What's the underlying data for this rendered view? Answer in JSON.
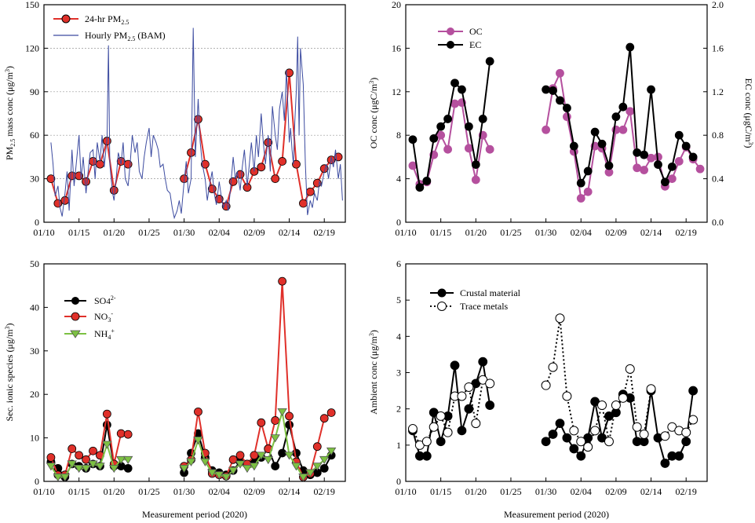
{
  "figure": {
    "xlabel": "Measurement period (2020)",
    "date_ticks": [
      "01/10",
      "01/15",
      "01/20",
      "01/25",
      "01/30",
      "02/04",
      "02/09",
      "02/14",
      "02/19"
    ]
  },
  "chart_data": [
    {
      "id": "pm25",
      "type": "line",
      "ylabel": "PM2.5 mass conc (μg/m3)",
      "ylim": [
        0,
        150
      ],
      "yticks": [
        0,
        30,
        60,
        90,
        120,
        150
      ],
      "x_unit": "day of year (Jan 1 = 1)",
      "xlim": [
        10,
        53
      ],
      "series": [
        {
          "name": "24-hr PM2.5",
          "color": "#e0302a",
          "x": [
            11,
            12,
            13,
            14,
            15,
            16,
            17,
            18,
            19,
            20,
            21,
            22,
            30,
            31,
            32,
            33,
            34,
            35,
            36,
            37,
            38,
            39,
            40,
            41,
            42,
            43,
            44,
            45,
            46,
            47,
            48,
            49,
            50,
            51,
            52
          ],
          "values": [
            30,
            13,
            15,
            32,
            32,
            28,
            42,
            40,
            56,
            22,
            42,
            40,
            30,
            48,
            71,
            40,
            23,
            16,
            11,
            28,
            33,
            24,
            35,
            38,
            55,
            30,
            42,
            103,
            40,
            13,
            21,
            27,
            37,
            43,
            45
          ]
        },
        {
          "name": "Hourly PM2.5 (BAM)",
          "color": "#3c4ba0",
          "x": [
            11,
            11.3,
            11.6,
            12,
            12.3,
            12.6,
            13,
            13.3,
            13.6,
            14,
            14.3,
            14.6,
            15,
            15.3,
            15.6,
            16,
            16.3,
            16.6,
            17,
            17.3,
            17.6,
            18,
            18.3,
            18.6,
            19,
            19.2,
            19.4,
            19.6,
            19.8,
            20,
            20.3,
            20.6,
            21,
            21.3,
            21.6,
            22,
            22.3,
            22.6,
            23,
            23.3,
            23.6,
            24,
            24.3,
            24.6,
            25,
            25.3,
            25.6,
            26,
            26.3,
            26.6,
            27,
            27.3,
            27.6,
            28,
            28.3,
            28.6,
            29,
            29.3,
            29.6,
            30,
            30.3,
            30.6,
            31,
            31.3,
            31.6,
            32,
            32.3,
            32.6,
            33,
            33.3,
            33.6,
            34,
            34.3,
            34.6,
            35,
            35.3,
            35.6,
            36,
            36.3,
            36.6,
            37,
            37.3,
            37.6,
            38,
            38.3,
            38.6,
            39,
            39.3,
            39.6,
            40,
            40.3,
            40.6,
            41,
            41.3,
            41.6,
            42,
            42.3,
            42.6,
            43,
            43.3,
            43.6,
            44,
            44.3,
            44.6,
            45,
            45.2,
            45.4,
            45.6,
            45.8,
            46,
            46.2,
            46.4,
            46.6,
            47,
            47.3,
            47.6,
            48,
            48.3,
            48.6,
            49,
            49.3,
            49.6,
            50,
            50.3,
            50.6,
            51,
            51.3,
            51.6,
            52,
            52.3,
            52.6
          ],
          "values": [
            55,
            40,
            18,
            25,
            10,
            4,
            20,
            35,
            8,
            50,
            25,
            40,
            60,
            30,
            45,
            20,
            35,
            48,
            50,
            30,
            55,
            42,
            60,
            38,
            58,
            122,
            40,
            30,
            20,
            15,
            30,
            48,
            40,
            55,
            30,
            25,
            40,
            60,
            48,
            55,
            35,
            30,
            45,
            55,
            65,
            45,
            60,
            55,
            50,
            38,
            40,
            30,
            22,
            20,
            10,
            3,
            8,
            15,
            6,
            28,
            42,
            20,
            30,
            134,
            45,
            85,
            55,
            40,
            30,
            15,
            25,
            35,
            20,
            12,
            28,
            18,
            10,
            15,
            8,
            22,
            45,
            30,
            35,
            22,
            38,
            50,
            25,
            40,
            55,
            35,
            60,
            45,
            75,
            55,
            40,
            60,
            35,
            80,
            60,
            50,
            78,
            90,
            70,
            105,
            55,
            65,
            50,
            40,
            70,
            90,
            128,
            60,
            120,
            95,
            40,
            5,
            15,
            10,
            20,
            15,
            28,
            25,
            35,
            40,
            30,
            45,
            38,
            50,
            30,
            40,
            15
          ]
        }
      ],
      "legend": [
        "24-hr PM2.5",
        "Hourly PM2.5 (BAM)"
      ],
      "legend_position": "top-left"
    },
    {
      "id": "ocec",
      "type": "line",
      "ylabel": "OC conc (μgC/m3)",
      "ylim": [
        0,
        20
      ],
      "yticks": [
        0,
        4,
        8,
        12,
        16,
        20
      ],
      "y2label": "EC conc (μgC/m3)",
      "y2lim": [
        0,
        2.0
      ],
      "y2ticks": [
        "0.0",
        "0.4",
        "0.8",
        "1.2",
        "1.6",
        "2.0"
      ],
      "series": [
        {
          "name": "OC",
          "color": "#b5509e",
          "axis": "left",
          "x": [
            11,
            12,
            13,
            14,
            15,
            16,
            17,
            18,
            19,
            20,
            21,
            22,
            30,
            31,
            32,
            33,
            34,
            35,
            36,
            37,
            38,
            39,
            40,
            41,
            42,
            43,
            44,
            45,
            46,
            47,
            48,
            49,
            50,
            51,
            52
          ],
          "values": [
            5.2,
            3.5,
            3.7,
            6.2,
            8.0,
            6.7,
            10.9,
            11.0,
            6.8,
            3.9,
            8.0,
            6.7,
            8.5,
            12.3,
            13.7,
            9.7,
            6.5,
            2.2,
            2.8,
            7.0,
            6.8,
            4.6,
            8.5,
            8.5,
            10.2,
            5.0,
            4.8,
            5.9,
            6.0,
            3.3,
            4.0,
            5.6,
            6.9,
            5.8,
            4.9
          ]
        },
        {
          "name": "EC",
          "color": "#000000",
          "axis": "right",
          "x": [
            11,
            12,
            13,
            14,
            15,
            16,
            17,
            18,
            19,
            20,
            21,
            22,
            30,
            31,
            32,
            33,
            34,
            35,
            36,
            37,
            38,
            39,
            40,
            41,
            42,
            43,
            44,
            45,
            46,
            47,
            48,
            49,
            50,
            51,
            52
          ],
          "values": [
            0.76,
            0.32,
            0.38,
            0.77,
            0.88,
            0.95,
            1.28,
            1.22,
            0.88,
            0.53,
            0.95,
            1.48,
            1.22,
            1.21,
            1.12,
            1.05,
            0.7,
            0.36,
            0.47,
            0.83,
            0.72,
            0.52,
            0.97,
            1.06,
            1.61,
            0.64,
            0.62,
            1.22,
            0.53,
            0.37,
            0.51,
            0.8,
            0.7,
            0.6,
            null
          ]
        }
      ],
      "legend": [
        "OC",
        "EC"
      ],
      "legend_position": "top-left"
    },
    {
      "id": "ionic",
      "type": "line",
      "ylabel": "Sec. ionic species (μg/m3)",
      "ylim": [
        0,
        50
      ],
      "yticks": [
        0,
        10,
        20,
        30,
        40,
        50
      ],
      "series": [
        {
          "name": "SO4 2-",
          "color": "#000000",
          "x": [
            11,
            12,
            13,
            14,
            15,
            16,
            17,
            18,
            19,
            20,
            21,
            22,
            30,
            31,
            32,
            33,
            34,
            35,
            36,
            37,
            38,
            39,
            40,
            41,
            42,
            43,
            44,
            45,
            46,
            47,
            48,
            49,
            50,
            51,
            52
          ],
          "values": [
            4.5,
            3.0,
            1.0,
            4.0,
            3.5,
            3.0,
            4.0,
            3.5,
            13.0,
            3.5,
            3.5,
            3.0,
            2.0,
            6.5,
            11.0,
            5.5,
            2.5,
            2.0,
            1.5,
            2.5,
            4.5,
            4.0,
            4.5,
            5.5,
            7.5,
            3.5,
            6.5,
            13.0,
            6.5,
            2.5,
            1.5,
            2.0,
            3.0,
            6.0,
            null
          ]
        },
        {
          "name": "NO3 -",
          "color": "#e0302a",
          "x": [
            11,
            12,
            13,
            14,
            15,
            16,
            17,
            18,
            19,
            20,
            21,
            22,
            30,
            31,
            32,
            33,
            34,
            35,
            36,
            37,
            38,
            39,
            40,
            41,
            42,
            43,
            44,
            45,
            46,
            47,
            48,
            49,
            50,
            51,
            52
          ],
          "values": [
            5.5,
            1.5,
            1.5,
            7.5,
            6.0,
            5.0,
            7.0,
            6.0,
            15.5,
            4.0,
            11.0,
            10.8,
            3.5,
            5.0,
            16.0,
            6.5,
            1.8,
            1.5,
            1.2,
            5.0,
            6.0,
            4.0,
            6.0,
            13.5,
            7.5,
            14.0,
            46.0,
            15.0,
            4.5,
            1.0,
            1.8,
            8.0,
            14.5,
            15.8,
            null
          ]
        },
        {
          "name": "NH4 +",
          "color": "#7cc142",
          "x": [
            11,
            12,
            13,
            14,
            15,
            16,
            17,
            18,
            19,
            20,
            21,
            22,
            30,
            31,
            32,
            33,
            34,
            35,
            36,
            37,
            38,
            39,
            40,
            41,
            42,
            43,
            44,
            45,
            46,
            47,
            48,
            49,
            50,
            51,
            52
          ],
          "values": [
            3.5,
            1.0,
            1.0,
            4.0,
            3.0,
            3.0,
            4.0,
            3.5,
            8.5,
            3.0,
            5.0,
            5.0,
            3.0,
            4.5,
            9.5,
            4.5,
            2.0,
            1.5,
            1.0,
            2.5,
            4.0,
            3.0,
            3.5,
            6.0,
            5.0,
            10.0,
            16.0,
            6.0,
            3.5,
            1.0,
            2.0,
            3.5,
            5.0,
            7.0,
            null
          ]
        }
      ],
      "legend": [
        "SO4 2-",
        "NO3 -",
        "NH4 +"
      ],
      "legend_position": "top-left"
    },
    {
      "id": "crustal",
      "type": "line",
      "ylabel": "Ambient conc (μg/m3)",
      "ylim": [
        0,
        6
      ],
      "yticks": [
        0,
        1,
        2,
        3,
        4,
        5,
        6
      ],
      "series": [
        {
          "name": "Crustal material",
          "color": "#000000",
          "style": "solid",
          "x": [
            11,
            12,
            13,
            14,
            15,
            16,
            17,
            18,
            19,
            20,
            21,
            22,
            30,
            31,
            32,
            33,
            34,
            35,
            36,
            37,
            38,
            39,
            40,
            41,
            42,
            43,
            44,
            45,
            46,
            47,
            48,
            49,
            50,
            51,
            52
          ],
          "values": [
            1.4,
            0.7,
            0.7,
            1.9,
            1.1,
            1.8,
            3.2,
            1.4,
            2.0,
            2.7,
            3.3,
            2.1,
            1.1,
            1.3,
            1.6,
            1.2,
            0.9,
            0.7,
            1.2,
            2.2,
            1.2,
            1.8,
            1.9,
            2.4,
            2.3,
            1.1,
            1.1,
            2.5,
            1.2,
            0.5,
            0.7,
            0.7,
            1.1,
            2.5,
            null
          ]
        },
        {
          "name": "Trace metals",
          "color": "#000000",
          "style": "dotted",
          "x": [
            11,
            12,
            13,
            14,
            15,
            16,
            17,
            18,
            19,
            20,
            21,
            22,
            30,
            31,
            32,
            33,
            34,
            35,
            36,
            37,
            38,
            39,
            40,
            41,
            42,
            43,
            44,
            45,
            46,
            47,
            48,
            49,
            50,
            51,
            52
          ],
          "values": [
            1.45,
            1.0,
            1.1,
            1.5,
            1.8,
            1.35,
            2.35,
            2.35,
            2.6,
            1.6,
            2.8,
            2.7,
            2.65,
            3.15,
            4.5,
            2.35,
            1.4,
            1.1,
            0.95,
            1.4,
            2.1,
            1.1,
            2.1,
            2.3,
            3.1,
            1.5,
            1.3,
            2.55,
            null,
            1.25,
            1.5,
            1.4,
            1.35,
            1.7,
            null
          ]
        }
      ],
      "legend": [
        "Crustal material",
        "Trace metals"
      ],
      "legend_position": "top-left"
    }
  ]
}
